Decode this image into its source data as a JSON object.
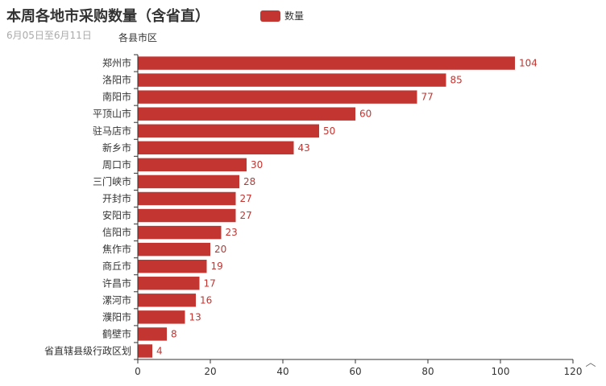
{
  "title": "本周各地市采购数量（含省直）",
  "subtitle": "6月05日至6月11日",
  "chart_data": {
    "type": "bar",
    "orientation": "horizontal",
    "title": "本周各地市采购数量（含省直）",
    "subtitle": "6月05日至6月11日",
    "ylabel": "各县市区",
    "xlabel": "",
    "xlim": [
      0,
      120
    ],
    "x_ticks": [
      0,
      20,
      40,
      60,
      80,
      100,
      120
    ],
    "grid": false,
    "legend_position": "top-center",
    "categories": [
      "郑州市",
      "洛阳市",
      "南阳市",
      "平顶山市",
      "驻马店市",
      "新乡市",
      "周口市",
      "三门峡市",
      "开封市",
      "安阳市",
      "信阳市",
      "焦作市",
      "商丘市",
      "许昌市",
      "漯河市",
      "濮阳市",
      "鹤壁市",
      "省直辖县级行政区划"
    ],
    "series": [
      {
        "name": "数量",
        "color": "#c23531",
        "values": [
          104,
          85,
          77,
          60,
          50,
          43,
          30,
          28,
          27,
          27,
          23,
          20,
          19,
          17,
          16,
          13,
          8,
          4
        ]
      }
    ]
  },
  "toolbar": {
    "collapse_glyph": "︿"
  }
}
